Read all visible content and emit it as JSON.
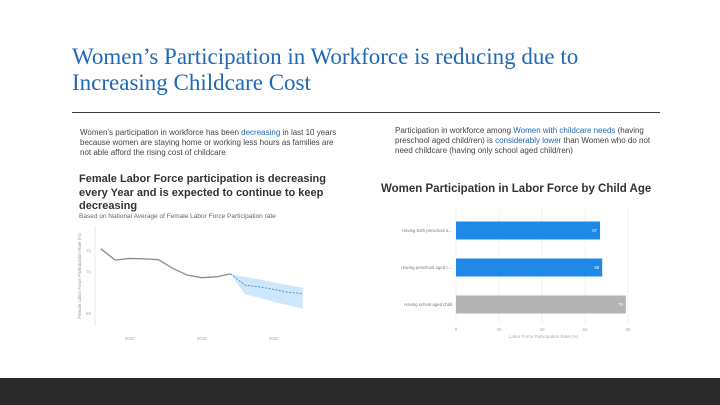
{
  "slide": {
    "title": "Women’s Participation in Workforce is reducing due to Increasing Childcare Cost"
  },
  "left_text": {
    "before": "Women’s participation in workforce has been ",
    "highlight": "decreasing",
    "after": " in last 10 years because women are staying home or working less hours as families are not able afford the rising cost of childcare"
  },
  "right_text": {
    "before": "Participation in workforce among ",
    "highlight1": "Women with childcare needs",
    "middle": " (having preschool aged child/ren) is ",
    "highlight2": "considerably lower",
    "after": " than Women who do not need childcare (having only school aged child/ren)"
  },
  "colors": {
    "accent": "#1f68b5",
    "bar_blue": "#1e88e5",
    "bar_gray": "#b3b3b3",
    "forecast_band": "#cfe7fb"
  },
  "chart_data": [
    {
      "type": "line",
      "title": "Female Labor Force participation is decreasing every Year and is expected to continue to keep decreasing",
      "subtitle": "Based on National Average of Female Labor Force Participation rate",
      "ylabel": "Female Labor Force Participation Rate (%)",
      "x": [
        2008,
        2009,
        2010,
        2011,
        2012,
        2013,
        2014,
        2015,
        2016,
        2017
      ],
      "values": [
        75.5,
        72.8,
        73.2,
        73.1,
        72.9,
        70.8,
        69.2,
        68.6,
        68.8,
        69.5
      ],
      "forecast": {
        "x": [
          2017,
          2018,
          2019,
          2020,
          2021,
          2022
        ],
        "values": [
          69.5,
          66.8,
          66.4,
          65.8,
          65.1,
          64.8
        ],
        "upper": [
          69.5,
          68.8,
          68.2,
          67.5,
          66.8,
          66.2
        ],
        "lower": [
          69.5,
          64.6,
          63.8,
          62.8,
          62.0,
          61.2
        ]
      },
      "xlim": [
        2007.6,
        2022.5
      ],
      "ylim": [
        58,
        80
      ],
      "yticks": [
        60,
        70,
        75
      ],
      "xticks": [
        2010,
        2015,
        2020
      ],
      "grid": false
    },
    {
      "type": "bar",
      "orientation": "horizontal",
      "title": "Women Participation in Labor Force by Child Age",
      "xlabel": "Labor Force Participation Rate (%)",
      "categories": [
        "Having both preschool a...",
        "Having preschool aged c...",
        "Having school aged child"
      ],
      "values": [
        67,
        68,
        79
      ],
      "data_labels": [
        "67",
        "68",
        "79"
      ],
      "xlim": [
        0,
        80
      ],
      "xticks": [
        0,
        20,
        40,
        60,
        80
      ],
      "grid": true
    }
  ]
}
